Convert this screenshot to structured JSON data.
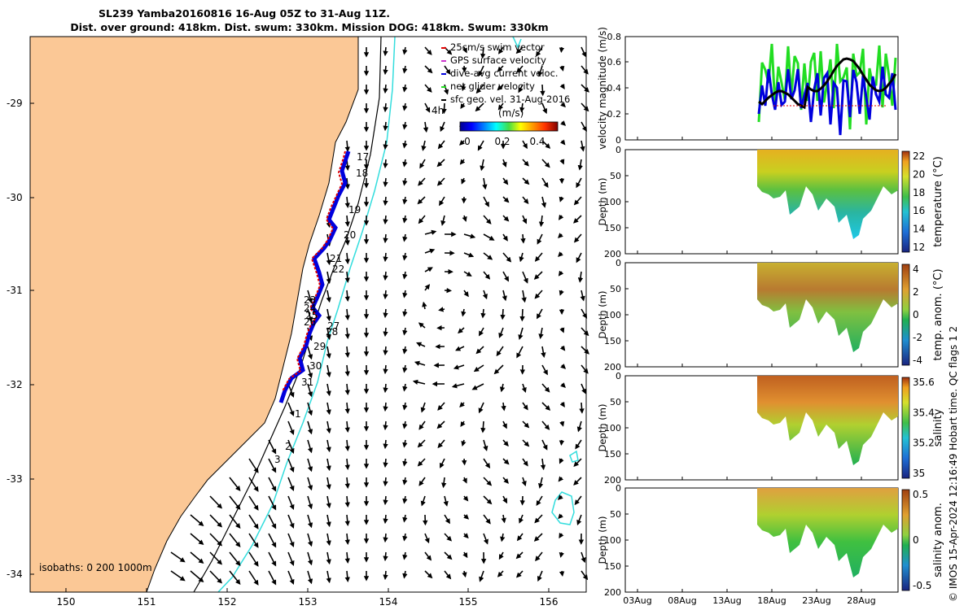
{
  "title_line1": "SL239 Yamba20160816 16-Aug 05Z to 31-Aug 11Z.",
  "title_line2": "Dist. over ground: 418km. Dist. swum: 330km. Mission DOG: 418km. Swum: 330km",
  "credit": "© IMOS 15-Apr-2024 12:16:49 Hobart time. QC flags 1  2",
  "map": {
    "lat_ticks": [
      "-29",
      "-30",
      "-31",
      "-32",
      "-33",
      "-34"
    ],
    "lon_ticks": [
      "150",
      "151",
      "152",
      "153",
      "154",
      "155",
      "156"
    ],
    "isobath_label": "isobaths: 0   200  1000m",
    "time_label": "4h",
    "legend": [
      {
        "label": "25cm/s swim vector",
        "color": "#e00000"
      },
      {
        "label": "GPS surface velocity",
        "color": "#cc33cc"
      },
      {
        "label": "dive-avg current veloc.",
        "color": "#0000dd"
      },
      {
        "label": "net glider velocity",
        "color": "#22dd22"
      },
      {
        "label": "sfc geo. vel. 31-Aug-2016",
        "color": "#000000"
      }
    ],
    "colorbar": {
      "unit": "(m/s)",
      "ticks": [
        "0",
        "0.2",
        "0.4"
      ]
    },
    "day_labels": [
      "17",
      "18",
      "19",
      "20",
      "21",
      "22",
      "23",
      "24",
      "25",
      "26",
      "27",
      "28",
      "29",
      "30",
      "31",
      "1",
      "2",
      "3"
    ],
    "colors": {
      "land": "#fbc896",
      "coast": "#000000",
      "isobath_200": "#000000",
      "isobath_1000": "#33dddd",
      "track": "#0000dd",
      "swim": "#e00000"
    }
  },
  "panels": {
    "velocity": {
      "ylabel": "velocity magnitude (m/s)",
      "yticks": [
        "0",
        "0.2",
        "0.4",
        "0.6",
        "0.8"
      ]
    },
    "temperature": {
      "ylabel": "Depth (m)",
      "cbar_label": "temperature (°C)",
      "cbar_ticks": [
        "22",
        "20",
        "18",
        "16",
        "14",
        "12"
      ]
    },
    "temp_anom": {
      "ylabel": "Depth (m)",
      "cbar_label": "temp. anom. (°C)",
      "cbar_ticks": [
        "4",
        "2",
        "0",
        "-2",
        "-4"
      ]
    },
    "salinity": {
      "ylabel": "Depth (m)",
      "cbar_label": "salinity",
      "cbar_ticks": [
        "35.6",
        "35.4",
        "35.2",
        "35"
      ]
    },
    "sal_anom": {
      "ylabel": "Depth (m)",
      "cbar_label": "salinity anom.",
      "cbar_ticks": [
        "0.5",
        "0",
        "-0.5"
      ]
    },
    "depth_ticks": [
      "0",
      "50",
      "100",
      "150",
      "200"
    ],
    "time_ticks": [
      "03Aug",
      "08Aug",
      "13Aug",
      "18Aug",
      "23Aug",
      "28Aug"
    ]
  }
}
